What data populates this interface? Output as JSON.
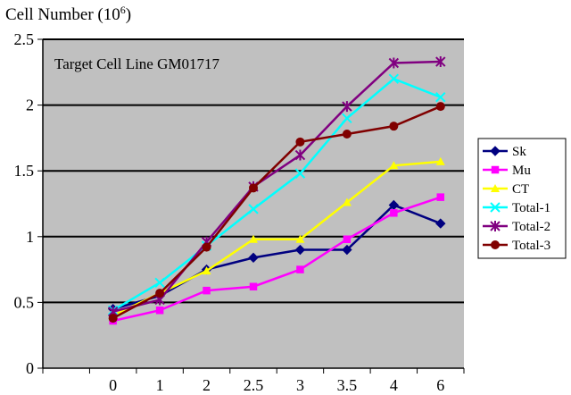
{
  "chart_data": {
    "type": "line",
    "title": "",
    "ylabel_text": "Cell Number (10",
    "ylabel_sup": "6",
    "ylabel_close": ")",
    "annotation": "Target Cell Line GM01717",
    "categories": [
      "0",
      "1",
      "2",
      "2.5",
      "3",
      "3.5",
      "4",
      "6"
    ],
    "ylim": [
      0,
      2.5
    ],
    "yticks": [
      "0",
      "0.5",
      "1",
      "1.5",
      "2",
      "2.5"
    ],
    "grid": true,
    "legend": "right",
    "plot_bg": "#c0c0c0",
    "series": [
      {
        "name": "Sk",
        "color": "#000080",
        "marker": "diamond",
        "values": [
          0.45,
          0.55,
          0.75,
          0.84,
          0.9,
          0.9,
          1.24,
          1.1
        ]
      },
      {
        "name": "Mu",
        "color": "#ff00ff",
        "marker": "square",
        "values": [
          0.36,
          0.44,
          0.59,
          0.62,
          0.75,
          0.98,
          1.18,
          1.3
        ]
      },
      {
        "name": "CT",
        "color": "#ffff00",
        "marker": "triangle",
        "values": [
          0.4,
          0.57,
          0.74,
          0.98,
          0.98,
          1.26,
          1.54,
          1.57
        ]
      },
      {
        "name": "Total-1",
        "color": "#00ffff",
        "marker": "x",
        "values": [
          0.44,
          0.65,
          0.93,
          1.21,
          1.48,
          1.9,
          2.2,
          2.06
        ]
      },
      {
        "name": "Total-2",
        "color": "#800080",
        "marker": "star",
        "values": [
          0.43,
          0.52,
          0.96,
          1.38,
          1.62,
          1.99,
          2.32,
          2.33
        ]
      },
      {
        "name": "Total-3",
        "color": "#800000",
        "marker": "circle",
        "values": [
          0.38,
          0.57,
          0.92,
          1.37,
          1.72,
          1.78,
          1.84,
          1.99
        ]
      }
    ]
  }
}
